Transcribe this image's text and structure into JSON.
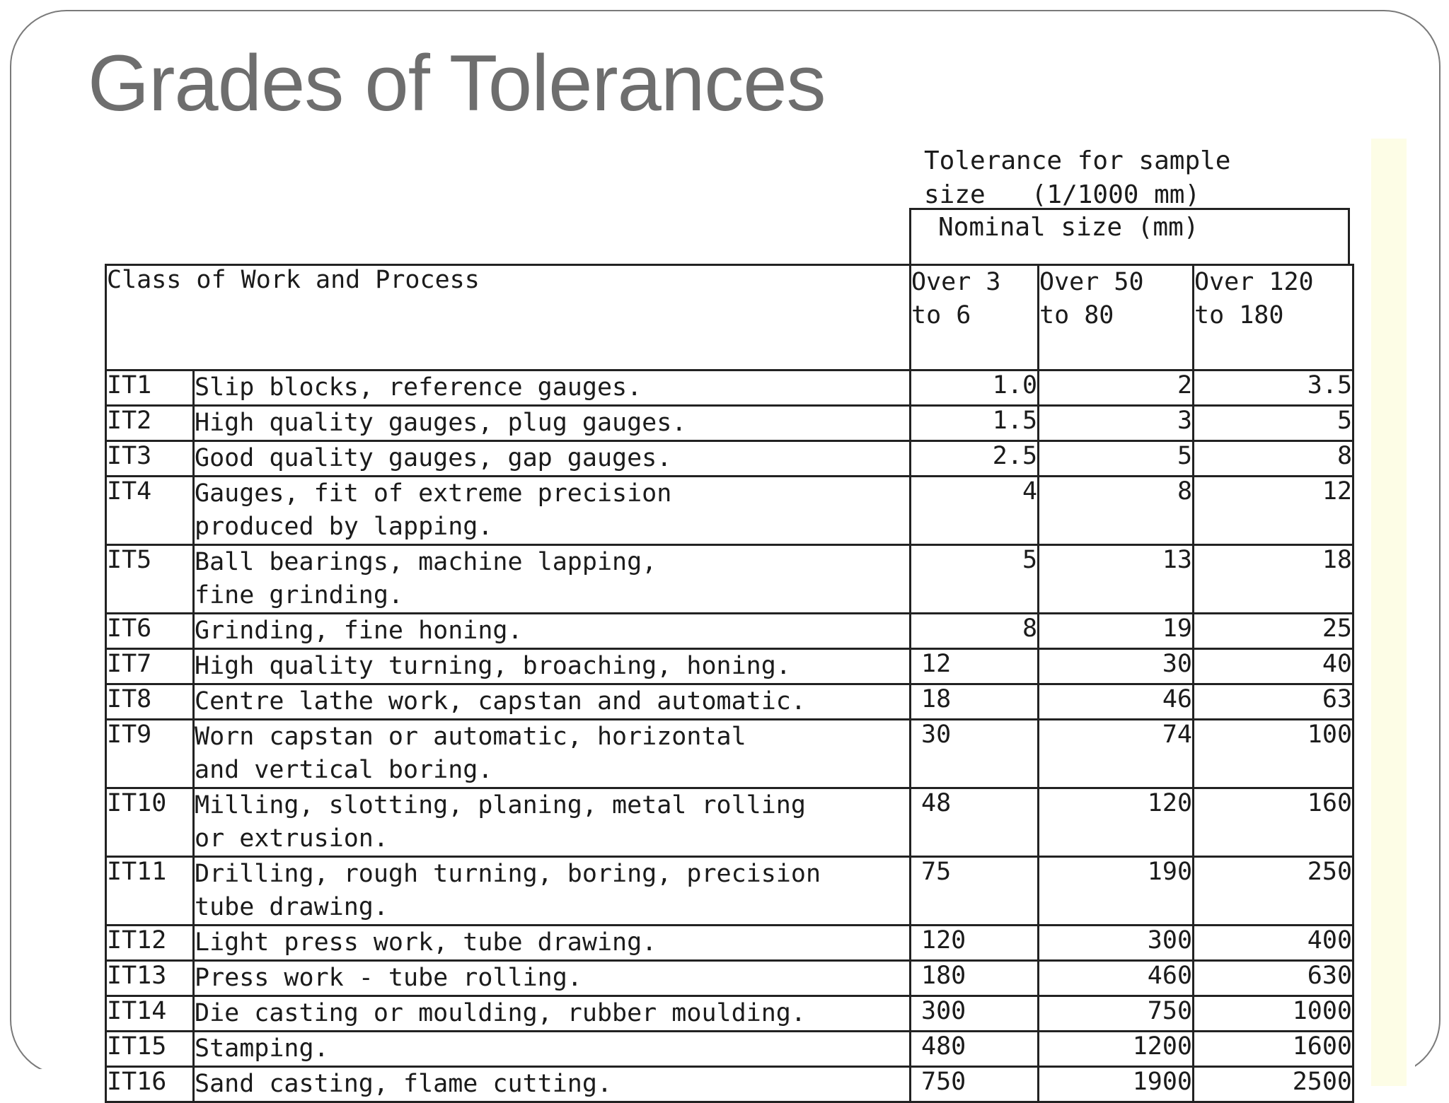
{
  "slide": {
    "title": "Grades of Tolerances"
  },
  "table_header": {
    "tolerance_line1": "Tolerance for sample",
    "tolerance_line2": "size   (1/1000 mm)",
    "nominal": "Nominal size (mm)",
    "class_col": "Class of Work and Process",
    "range1_line1": "Over 3",
    "range1_line2": "to 6",
    "range2_line1": "Over 50",
    "range2_line2": "to 80",
    "range3_line1": "Over 120",
    "range3_line2": "to 180"
  },
  "rows": [
    {
      "grade": "IT1",
      "process": "Slip blocks, reference gauges.",
      "v1": "1.0",
      "v2": "2",
      "v3": "3.5"
    },
    {
      "grade": "IT2",
      "process": "High quality gauges, plug gauges.",
      "v1": "1.5",
      "v2": "3",
      "v3": "5"
    },
    {
      "grade": "IT3",
      "process": "Good quality gauges, gap gauges.",
      "v1": "2.5",
      "v2": "5",
      "v3": "8"
    },
    {
      "grade": "IT4",
      "process_line1": "Gauges, fit of extreme precision",
      "process_line2": "produced by lapping.",
      "v1": "4",
      "v2": "8",
      "v3": "12"
    },
    {
      "grade": "IT5",
      "process_line1": "Ball bearings, machine lapping,",
      "process_line2": "fine grinding.",
      "v1": "5",
      "v2": "13",
      "v3": "18"
    },
    {
      "grade": "IT6",
      "process": "Grinding, fine honing.",
      "v1": "8",
      "v2": "19",
      "v3": "25"
    },
    {
      "grade": "IT7",
      "process": "High quality turning, broaching, honing.",
      "v1": "12",
      "v2": "30",
      "v3": "40"
    },
    {
      "grade": "IT8",
      "process": "Centre lathe work, capstan and automatic.",
      "v1": "18",
      "v2": "46",
      "v3": "63"
    },
    {
      "grade": "IT9",
      "process_line1": "Worn capstan or automatic, horizontal",
      "process_line2": "and vertical boring.",
      "v1": "30",
      "v2": "74",
      "v3": "100"
    },
    {
      "grade": "IT10",
      "process_line1": "Milling, slotting, planing, metal rolling",
      "process_line2": "or extrusion.",
      "v1": "48",
      "v2": "120",
      "v3": "160"
    },
    {
      "grade": "IT11",
      "process_line1": "Drilling, rough turning, boring, precision",
      "process_line2": "tube drawing.",
      "v1": "75",
      "v2": "190",
      "v3": "250"
    },
    {
      "grade": "IT12",
      "process": "Light press work, tube drawing.",
      "v1": "120",
      "v2": "300",
      "v3": "400"
    },
    {
      "grade": "IT13",
      "process": "Press work - tube rolling.",
      "v1": "180",
      "v2": "460",
      "v3": "630"
    },
    {
      "grade": "IT14",
      "process": "Die casting or moulding, rubber moulding.",
      "v1": "300",
      "v2": "750",
      "v3": "1000"
    },
    {
      "grade": "IT15",
      "process": "Stamping.",
      "v1": "480",
      "v2": "1200",
      "v3": "1600"
    },
    {
      "grade": "IT16",
      "process": "Sand casting, flame cutting.",
      "v1": "750",
      "v2": "1900",
      "v3": "2500"
    }
  ]
}
